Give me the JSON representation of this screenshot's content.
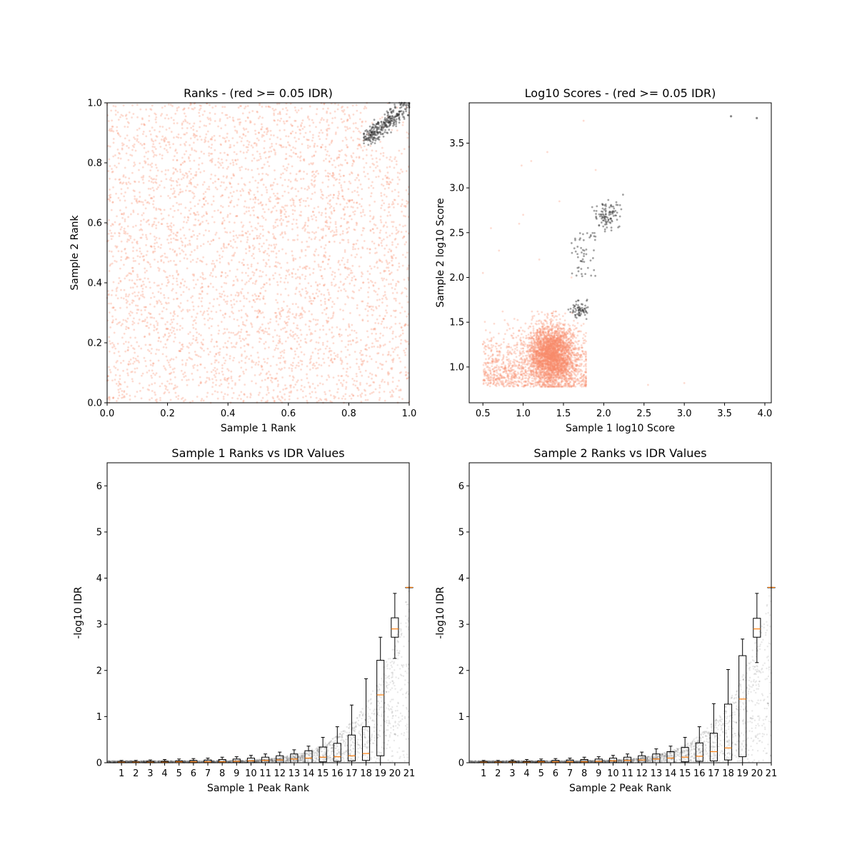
{
  "chart_data": [
    {
      "type": "scatter",
      "title": "Ranks - (red >= 0.05 IDR)",
      "xlabel": "Sample 1 Rank",
      "ylabel": "Sample 2 Rank",
      "xlim": [
        0.0,
        1.0
      ],
      "ylim": [
        0.0,
        1.0
      ],
      "xticks": [
        "0.0",
        "0.2",
        "0.4",
        "0.6",
        "0.8",
        "1.0"
      ],
      "yticks": [
        "0.0",
        "0.2",
        "0.4",
        "0.6",
        "0.8",
        "1.0"
      ],
      "grid": false,
      "series": [
        {
          "color": "#fa8a6a",
          "point_count": 4200,
          "description": "uniform scatter over [0,1]x[0,1]"
        },
        {
          "color": "#333333",
          "point_count": 300,
          "description": "dense cluster near (0.93,0.95) to (1,1)"
        }
      ]
    },
    {
      "type": "scatter",
      "title": "Log10 Scores - (red >= 0.05 IDR)",
      "xlabel": "Sample 1 log10 Score",
      "ylabel": "Sample 2 log10 Score",
      "xlim": [
        0.33,
        4.08
      ],
      "ylim": [
        0.6,
        3.95
      ],
      "xticks": [
        "0.5",
        "1.0",
        "1.5",
        "2.0",
        "2.5",
        "3.0",
        "3.5",
        "4.0"
      ],
      "yticks": [
        "1.0",
        "1.5",
        "2.0",
        "2.5",
        "3.0",
        "3.5"
      ],
      "grid": false,
      "series": [
        {
          "color": "#fa8a6a",
          "point_count": 4000,
          "description": "cloud centered near (1.35,1.15), x 0.5-1.75, y 0.78-1.6"
        },
        {
          "color": "#333333",
          "point_count": 220,
          "description": "band from (1.6,1.55) up to (2.3,2.9), plus outliers near (3.6,3.8),(3.9,3.78)"
        }
      ]
    },
    {
      "type": "boxplot",
      "title": "Sample 1 Ranks vs IDR Values",
      "xlabel": "Sample 1 Peak Rank",
      "ylabel": "-log10 IDR",
      "ylim": [
        0,
        6.5
      ],
      "xticks": [
        "1",
        "2",
        "3",
        "4",
        "5",
        "6",
        "7",
        "8",
        "9",
        "10",
        "11",
        "12",
        "13",
        "14",
        "15",
        "16",
        "17",
        "18",
        "19",
        "20",
        "21"
      ],
      "yticks": [
        "0",
        "1",
        "2",
        "3",
        "4",
        "5",
        "6"
      ],
      "grid": false,
      "boxes": [
        {
          "pos": 1,
          "q1": 0.0,
          "med": 0.01,
          "q3": 0.02,
          "whislo": 0,
          "whishi": 0.05
        },
        {
          "pos": 2,
          "q1": 0.0,
          "med": 0.01,
          "q3": 0.02,
          "whislo": 0,
          "whishi": 0.05
        },
        {
          "pos": 3,
          "q1": 0.0,
          "med": 0.01,
          "q3": 0.03,
          "whislo": 0,
          "whishi": 0.06
        },
        {
          "pos": 4,
          "q1": 0.0,
          "med": 0.01,
          "q3": 0.03,
          "whislo": 0,
          "whishi": 0.07
        },
        {
          "pos": 5,
          "q1": 0.0,
          "med": 0.02,
          "q3": 0.04,
          "whislo": 0,
          "whishi": 0.08
        },
        {
          "pos": 6,
          "q1": 0.0,
          "med": 0.02,
          "q3": 0.05,
          "whislo": 0,
          "whishi": 0.09
        },
        {
          "pos": 7,
          "q1": 0.0,
          "med": 0.02,
          "q3": 0.06,
          "whislo": 0,
          "whishi": 0.1
        },
        {
          "pos": 8,
          "q1": 0.0,
          "med": 0.02,
          "q3": 0.07,
          "whislo": 0,
          "whishi": 0.12
        },
        {
          "pos": 9,
          "q1": 0.0,
          "med": 0.03,
          "q3": 0.08,
          "whislo": 0,
          "whishi": 0.13
        },
        {
          "pos": 10,
          "q1": 0.0,
          "med": 0.04,
          "q3": 0.1,
          "whislo": 0,
          "whishi": 0.16
        },
        {
          "pos": 11,
          "q1": 0.0,
          "med": 0.05,
          "q3": 0.12,
          "whislo": 0,
          "whishi": 0.19
        },
        {
          "pos": 12,
          "q1": 0.0,
          "med": 0.06,
          "q3": 0.15,
          "whislo": 0,
          "whishi": 0.23
        },
        {
          "pos": 13,
          "q1": 0.0,
          "med": 0.08,
          "q3": 0.19,
          "whislo": 0,
          "whishi": 0.28
        },
        {
          "pos": 14,
          "q1": 0.0,
          "med": 0.1,
          "q3": 0.26,
          "whislo": 0,
          "whishi": 0.36
        },
        {
          "pos": 15,
          "q1": 0.02,
          "med": 0.12,
          "q3": 0.34,
          "whislo": 0,
          "whishi": 0.55
        },
        {
          "pos": 16,
          "q1": 0.03,
          "med": 0.13,
          "q3": 0.42,
          "whislo": 0,
          "whishi": 0.78
        },
        {
          "pos": 17,
          "q1": 0.04,
          "med": 0.15,
          "q3": 0.6,
          "whislo": 0,
          "whishi": 1.25
        },
        {
          "pos": 18,
          "q1": 0.05,
          "med": 0.2,
          "q3": 0.78,
          "whislo": 0,
          "whishi": 1.82
        },
        {
          "pos": 19,
          "q1": 0.15,
          "med": 1.47,
          "q3": 2.22,
          "whislo": 0,
          "whishi": 2.72
        },
        {
          "pos": 20,
          "q1": 2.72,
          "med": 2.9,
          "q3": 3.14,
          "whislo": 2.26,
          "whishi": 3.67
        },
        {
          "pos": 21,
          "q1": 3.8,
          "med": 3.8,
          "q3": 3.8,
          "whislo": 3.8,
          "whishi": 3.8
        }
      ]
    },
    {
      "type": "boxplot",
      "title": "Sample 2 Ranks vs IDR Values",
      "xlabel": "Sample 2 Peak Rank",
      "ylabel": "-log10 IDR",
      "ylim": [
        0,
        6.5
      ],
      "xticks": [
        "1",
        "2",
        "3",
        "4",
        "5",
        "6",
        "7",
        "8",
        "9",
        "10",
        "11",
        "12",
        "13",
        "14",
        "15",
        "16",
        "17",
        "18",
        "19",
        "20",
        "21"
      ],
      "yticks": [
        "0",
        "1",
        "2",
        "3",
        "4",
        "5",
        "6"
      ],
      "grid": false,
      "boxes": [
        {
          "pos": 1,
          "q1": 0.0,
          "med": 0.01,
          "q3": 0.02,
          "whislo": 0,
          "whishi": 0.05
        },
        {
          "pos": 2,
          "q1": 0.0,
          "med": 0.01,
          "q3": 0.02,
          "whislo": 0,
          "whishi": 0.05
        },
        {
          "pos": 3,
          "q1": 0.0,
          "med": 0.01,
          "q3": 0.03,
          "whislo": 0,
          "whishi": 0.06
        },
        {
          "pos": 4,
          "q1": 0.0,
          "med": 0.01,
          "q3": 0.03,
          "whislo": 0,
          "whishi": 0.07
        },
        {
          "pos": 5,
          "q1": 0.0,
          "med": 0.02,
          "q3": 0.04,
          "whislo": 0,
          "whishi": 0.08
        },
        {
          "pos": 6,
          "q1": 0.0,
          "med": 0.02,
          "q3": 0.05,
          "whislo": 0,
          "whishi": 0.09
        },
        {
          "pos": 7,
          "q1": 0.0,
          "med": 0.02,
          "q3": 0.06,
          "whislo": 0,
          "whishi": 0.1
        },
        {
          "pos": 8,
          "q1": 0.0,
          "med": 0.02,
          "q3": 0.07,
          "whislo": 0,
          "whishi": 0.12
        },
        {
          "pos": 9,
          "q1": 0.0,
          "med": 0.03,
          "q3": 0.08,
          "whislo": 0,
          "whishi": 0.13
        },
        {
          "pos": 10,
          "q1": 0.0,
          "med": 0.04,
          "q3": 0.1,
          "whislo": 0,
          "whishi": 0.16
        },
        {
          "pos": 11,
          "q1": 0.0,
          "med": 0.05,
          "q3": 0.12,
          "whislo": 0,
          "whishi": 0.19
        },
        {
          "pos": 12,
          "q1": 0.0,
          "med": 0.06,
          "q3": 0.15,
          "whislo": 0,
          "whishi": 0.23
        },
        {
          "pos": 13,
          "q1": 0.0,
          "med": 0.08,
          "q3": 0.19,
          "whislo": 0,
          "whishi": 0.3
        },
        {
          "pos": 14,
          "q1": 0.0,
          "med": 0.1,
          "q3": 0.24,
          "whislo": 0,
          "whishi": 0.36
        },
        {
          "pos": 15,
          "q1": 0.02,
          "med": 0.12,
          "q3": 0.33,
          "whislo": 0,
          "whishi": 0.55
        },
        {
          "pos": 16,
          "q1": 0.03,
          "med": 0.14,
          "q3": 0.43,
          "whislo": 0,
          "whishi": 0.78
        },
        {
          "pos": 17,
          "q1": 0.04,
          "med": 0.24,
          "q3": 0.64,
          "whislo": 0,
          "whishi": 1.28
        },
        {
          "pos": 18,
          "q1": 0.06,
          "med": 0.32,
          "q3": 1.27,
          "whislo": 0,
          "whishi": 2.02
        },
        {
          "pos": 19,
          "q1": 0.13,
          "med": 1.38,
          "q3": 2.32,
          "whislo": 0,
          "whishi": 2.68
        },
        {
          "pos": 20,
          "q1": 2.72,
          "med": 2.9,
          "q3": 3.13,
          "whislo": 2.17,
          "whishi": 3.67
        },
        {
          "pos": 21,
          "q1": 3.8,
          "med": 3.8,
          "q3": 3.8,
          "whislo": 3.8,
          "whishi": 3.8
        }
      ]
    }
  ]
}
